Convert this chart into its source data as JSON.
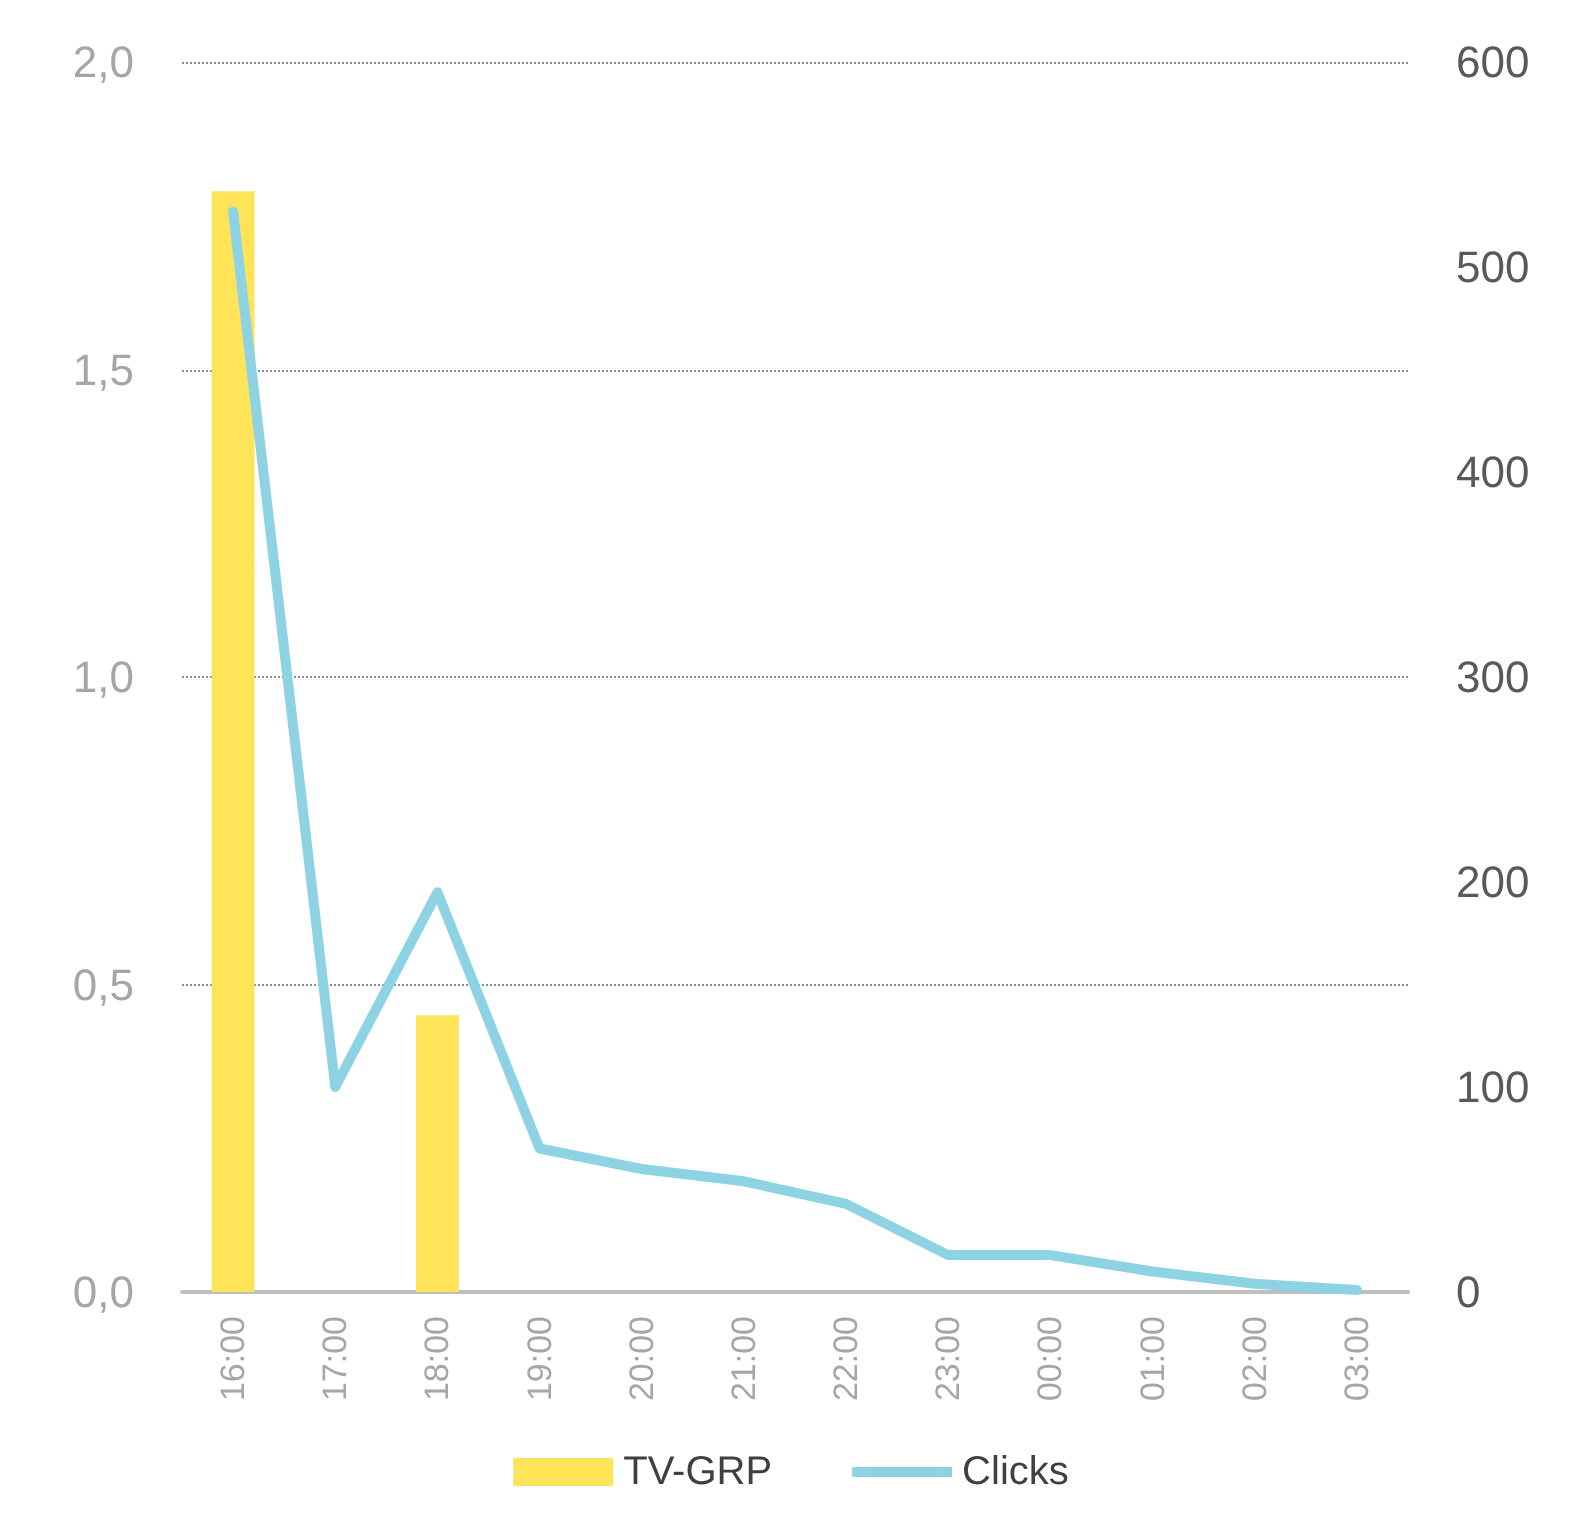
{
  "chart_data": {
    "type": "bar",
    "categories": [
      "16:00",
      "17:00",
      "18:00",
      "19:00",
      "20:00",
      "21:00",
      "22:00",
      "23:00",
      "00:00",
      "01:00",
      "02:00",
      "03:00"
    ],
    "series": [
      {
        "name": "TV-GRP",
        "color": "#ffe359",
        "values": [
          1.79,
          0,
          0.45,
          0,
          0,
          0,
          0,
          0,
          0,
          0,
          0,
          0
        ]
      },
      {
        "name": "Clicks",
        "type": "line",
        "axis": "y2",
        "color": "#8dd3e3",
        "values": [
          527,
          100,
          195,
          70,
          60,
          54,
          43,
          18,
          18,
          10,
          4,
          1
        ]
      }
    ],
    "ylim": [
      0,
      2
    ],
    "yticks": [
      {
        "value": 0,
        "label": "0,0"
      },
      {
        "value": 0.5,
        "label": "0,5"
      },
      {
        "value": 1,
        "label": "1,0"
      },
      {
        "value": 1.5,
        "label": "1,5"
      },
      {
        "value": 2,
        "label": "2,0"
      }
    ],
    "y2lim": [
      0,
      600
    ],
    "y2ticks": [
      0,
      100,
      200,
      300,
      400,
      500,
      600
    ],
    "grid": "y",
    "legend": "bottom",
    "marker": "none",
    "line_style": "solid"
  }
}
